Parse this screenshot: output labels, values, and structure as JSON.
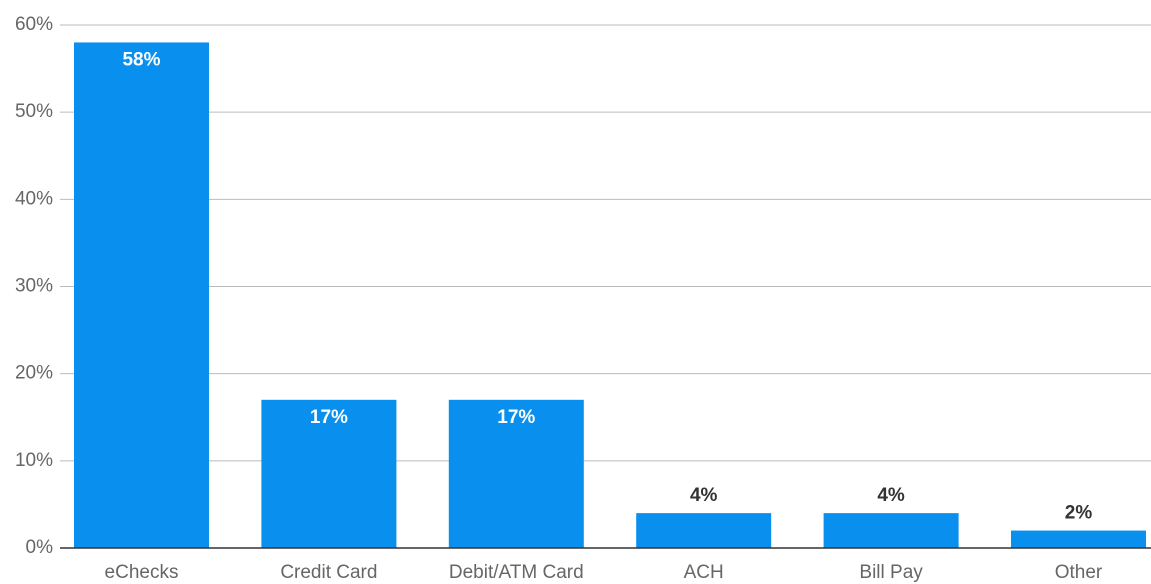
{
  "chart_data": {
    "type": "bar",
    "categories": [
      "eChecks",
      "Credit Card",
      "Debit/ATM Card",
      "ACH",
      "Bill Pay",
      "Other"
    ],
    "values": [
      58,
      17,
      17,
      4,
      4,
      2
    ],
    "value_labels": [
      "58%",
      "17%",
      "17%",
      "4%",
      "4%",
      "2%"
    ],
    "color": "#0990ef",
    "ylim": [
      0,
      60
    ],
    "yticks": [
      {
        "value": 0,
        "label": "0%"
      },
      {
        "value": 10,
        "label": "10%"
      },
      {
        "value": 20,
        "label": "20%"
      },
      {
        "value": 30,
        "label": "30%"
      },
      {
        "value": 40,
        "label": "40%"
      },
      {
        "value": 50,
        "label": "50%"
      },
      {
        "value": 60,
        "label": "60%"
      }
    ],
    "grid": true
  }
}
